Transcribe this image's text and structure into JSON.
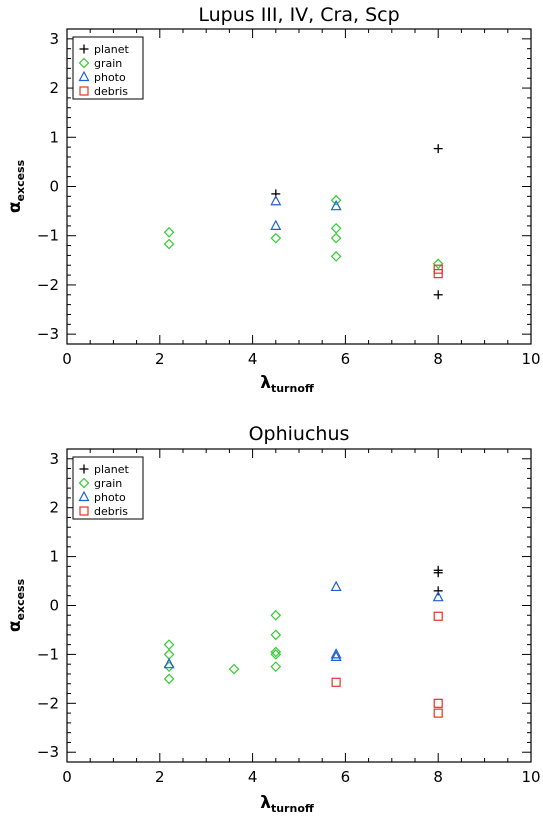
{
  "colors": {
    "planet": "#000000",
    "grain": "#33cc33",
    "photo": "#1f5fd6",
    "debris": "#e8321e"
  },
  "chart_data": [
    {
      "type": "scatter",
      "title": "Lupus III, IV, Cra, Scp",
      "xlabel": "λ",
      "xlabel_sub": "turnoff",
      "ylabel": "α",
      "ylabel_sub": "excess",
      "xlim": [
        0,
        10
      ],
      "ylim": [
        -3.2,
        3.2
      ],
      "xticks": [
        "0",
        "2",
        "4",
        "6",
        "8",
        "10"
      ],
      "yticks": [
        "3",
        "2",
        "1",
        "0",
        "−1",
        "−2",
        "−3"
      ],
      "legend": "top-left",
      "series": [
        {
          "name": "planet",
          "marker": "plus",
          "points": [
            [
              4.5,
              -0.15
            ],
            [
              8.0,
              0.77
            ],
            [
              8.0,
              -2.2
            ]
          ]
        },
        {
          "name": "grain",
          "marker": "diamond",
          "points": [
            [
              2.2,
              -0.93
            ],
            [
              2.2,
              -1.17
            ],
            [
              4.5,
              -1.05
            ],
            [
              5.8,
              -0.28
            ],
            [
              5.8,
              -0.85
            ],
            [
              5.8,
              -1.05
            ],
            [
              5.8,
              -1.42
            ],
            [
              8.0,
              -1.57
            ]
          ]
        },
        {
          "name": "photo",
          "marker": "triangle",
          "points": [
            [
              4.5,
              -0.3
            ],
            [
              4.5,
              -0.8
            ],
            [
              5.8,
              -0.4
            ]
          ]
        },
        {
          "name": "debris",
          "marker": "square",
          "points": [
            [
              8.0,
              -1.68
            ],
            [
              8.0,
              -1.77
            ]
          ]
        }
      ]
    },
    {
      "type": "scatter",
      "title": "Ophiuchus",
      "xlabel": "λ",
      "xlabel_sub": "turnoff",
      "ylabel": "α",
      "ylabel_sub": "excess",
      "xlim": [
        0,
        10
      ],
      "ylim": [
        -3.2,
        3.2
      ],
      "xticks": [
        "0",
        "2",
        "4",
        "6",
        "8",
        "10"
      ],
      "yticks": [
        "3",
        "2",
        "1",
        "0",
        "−1",
        "−2",
        "−3"
      ],
      "legend": "top-left",
      "series": [
        {
          "name": "planet",
          "marker": "plus",
          "points": [
            [
              8.0,
              0.72
            ],
            [
              8.0,
              0.67
            ],
            [
              8.0,
              0.3
            ]
          ]
        },
        {
          "name": "grain",
          "marker": "diamond",
          "points": [
            [
              2.2,
              -0.8
            ],
            [
              2.2,
              -1.0
            ],
            [
              2.2,
              -1.25
            ],
            [
              2.2,
              -1.5
            ],
            [
              3.6,
              -1.3
            ],
            [
              4.5,
              -0.2
            ],
            [
              4.5,
              -0.6
            ],
            [
              4.5,
              -0.95
            ],
            [
              4.5,
              -1.0
            ],
            [
              4.5,
              -1.25
            ]
          ]
        },
        {
          "name": "photo",
          "marker": "triangle",
          "points": [
            [
              2.2,
              -1.2
            ],
            [
              5.8,
              0.38
            ],
            [
              5.8,
              -1.0
            ],
            [
              5.8,
              -1.05
            ],
            [
              8.0,
              0.17
            ]
          ]
        },
        {
          "name": "debris",
          "marker": "square",
          "points": [
            [
              5.8,
              -1.57
            ],
            [
              8.0,
              -0.22
            ],
            [
              8.0,
              -2.0
            ],
            [
              8.0,
              -2.2
            ]
          ]
        }
      ]
    }
  ]
}
